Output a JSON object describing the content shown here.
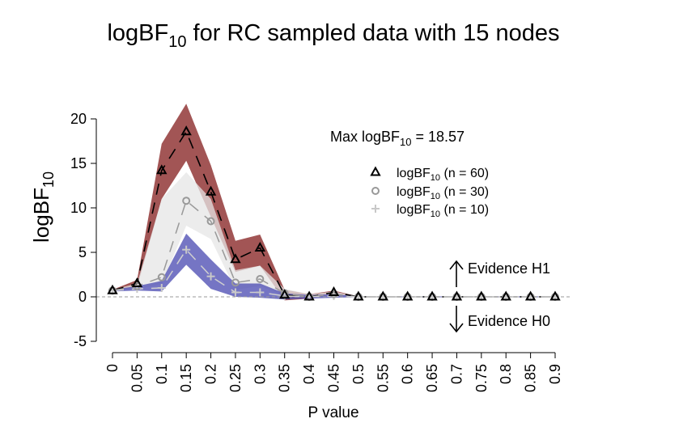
{
  "chart_data": {
    "type": "line",
    "title": "logBF10 for RC sampled data with 15 nodes",
    "title_main": "logBF",
    "title_sub": "10",
    "title_rest": " for RC sampled data with 15 nodes",
    "xlabel": "P value",
    "ylabel_main": "logBF",
    "ylabel_sub": "10",
    "x": [
      0,
      0.05,
      0.1,
      0.15,
      0.2,
      0.25,
      0.3,
      0.35,
      0.4,
      0.45,
      0.5,
      0.55,
      0.6,
      0.65,
      0.7,
      0.75,
      0.8,
      0.85,
      0.9
    ],
    "x_ticklabels": [
      "0",
      "0.05",
      "0.1",
      "0.15",
      "0.2",
      "0.25",
      "0.3",
      "0.35",
      "0.4",
      "0.45",
      "0.5",
      "0.55",
      "0.6",
      "0.65",
      "0.7",
      "0.75",
      "0.8",
      "0.85",
      "0.9"
    ],
    "ylim": [
      -5,
      20
    ],
    "y_ticks": [
      -5,
      0,
      5,
      10,
      15,
      20
    ],
    "y_ticklabels": [
      "-5",
      "0",
      "5",
      "10",
      "15",
      "20"
    ],
    "reference_line": 0,
    "annotation": {
      "max_prefix": "Max logBF",
      "max_sub": "10",
      "max_suffix": " = 18.57",
      "evidence_h1": "Evidence H1",
      "evidence_h0": "Evidence H0"
    },
    "series": [
      {
        "legend_main": "logBF",
        "legend_sub": "10",
        "legend_suffix": " (n = 60)",
        "marker": "triangle",
        "line_color": "#000000",
        "band_color": "#8b2a2a",
        "values": [
          0.7,
          1.5,
          14.2,
          18.57,
          11.8,
          4.2,
          5.5,
          0.2,
          0.0,
          0.5,
          0.0,
          0.0,
          0.0,
          0.0,
          0.0,
          0.0,
          0.0,
          0.0,
          0.0
        ],
        "lower": [
          0.6,
          1.1,
          11.0,
          15.3,
          9.0,
          2.8,
          3.5,
          -0.4,
          -0.2,
          0.3,
          -0.05,
          -0.05,
          -0.05,
          -0.05,
          -0.05,
          -0.05,
          -0.05,
          -0.05,
          -0.05
        ],
        "upper": [
          0.8,
          1.9,
          17.2,
          21.7,
          14.8,
          6.3,
          7.0,
          0.8,
          0.3,
          0.7,
          0.05,
          0.05,
          0.05,
          0.05,
          0.05,
          0.05,
          0.05,
          0.05,
          0.05
        ]
      },
      {
        "legend_main": "logBF",
        "legend_sub": "10",
        "legend_suffix": " (n = 30)",
        "marker": "circle",
        "line_color": "#999999",
        "band_color": "#e6e6e6",
        "values": [
          0.7,
          1.2,
          2.2,
          10.8,
          8.5,
          1.6,
          2.0,
          0.4,
          0.0,
          0.3,
          0.0,
          0.0,
          0.0,
          0.0,
          0.0,
          0.0,
          0.0,
          0.0,
          0.0
        ],
        "lower": [
          0.6,
          0.9,
          1.4,
          8.0,
          6.5,
          0.8,
          1.2,
          0.1,
          -0.1,
          0.1,
          -0.05,
          -0.05,
          -0.05,
          -0.05,
          -0.05,
          -0.05,
          -0.05,
          -0.05,
          -0.05
        ],
        "upper": [
          0.8,
          1.5,
          11.0,
          14.0,
          11.0,
          3.0,
          3.5,
          0.9,
          0.3,
          0.6,
          0.05,
          0.05,
          0.05,
          0.05,
          0.05,
          0.05,
          0.05,
          0.05,
          0.05
        ]
      },
      {
        "legend_main": "logBF",
        "legend_sub": "10",
        "legend_suffix": " (n = 10)",
        "marker": "plus",
        "line_color": "#cfcfcf",
        "band_color": "#5353b5",
        "values": [
          0.7,
          0.9,
          1.0,
          5.3,
          2.3,
          0.5,
          0.5,
          0.1,
          0.0,
          0.1,
          0.0,
          0.0,
          0.0,
          0.0,
          0.0,
          0.0,
          0.0,
          0.0,
          0.0
        ],
        "lower": [
          0.6,
          0.7,
          0.6,
          3.6,
          0.9,
          0.0,
          -0.1,
          -0.3,
          -0.2,
          -0.1,
          -0.05,
          -0.05,
          -0.05,
          -0.05,
          -0.05,
          -0.05,
          -0.05,
          -0.05,
          -0.05
        ],
        "upper": [
          0.8,
          1.2,
          1.8,
          7.1,
          4.2,
          1.5,
          1.5,
          0.4,
          0.2,
          0.3,
          0.05,
          0.05,
          0.05,
          0.05,
          0.05,
          0.05,
          0.05,
          0.05,
          0.05
        ]
      }
    ]
  }
}
